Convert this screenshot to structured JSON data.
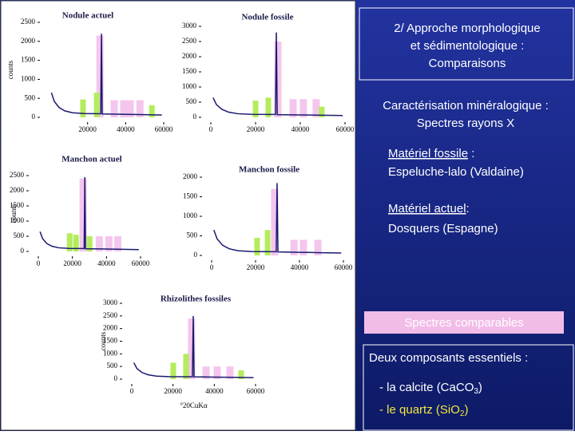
{
  "chart_data": [
    {
      "type": "bar",
      "title": "Nodule actuel",
      "ylabel": "counts",
      "xlim": [
        0,
        60000
      ],
      "ylim": [
        0,
        2500
      ],
      "xticks": [
        20000,
        40000,
        60000
      ],
      "yticks": [
        0,
        500,
        1000,
        1500,
        2000,
        2500
      ],
      "series": [
        {
          "type": "bar",
          "color": "#f4c6ee",
          "x": [
            26500,
            34000,
            39000,
            42400,
            47500
          ],
          "values": [
            2150,
            450,
            450,
            450,
            450
          ]
        },
        {
          "type": "bar",
          "color": "#b4ec5c",
          "x": [
            17600,
            24800,
            53800
          ],
          "values": [
            470,
            650,
            320
          ]
        },
        {
          "type": "line",
          "color": "#1a1a6e",
          "x": [
            1000,
            2500,
            5000,
            8000,
            12000,
            18000,
            26900,
            27300,
            27700,
            40000,
            50000,
            59000
          ],
          "values": [
            650,
            420,
            260,
            170,
            120,
            100,
            95,
            2200,
            90,
            80,
            70,
            60
          ]
        }
      ]
    },
    {
      "type": "bar",
      "title": "Nodule fossile",
      "xlim": [
        0,
        60000
      ],
      "ylim": [
        0,
        3000
      ],
      "xticks": [
        0,
        20000,
        40000,
        60000
      ],
      "yticks": [
        0,
        500,
        1000,
        1500,
        2000,
        2500,
        3000
      ],
      "series": [
        {
          "type": "bar",
          "color": "#f4c6ee",
          "x": [
            30000,
            36800,
            41400,
            47100
          ],
          "values": [
            2500,
            600,
            600,
            600
          ]
        },
        {
          "type": "bar",
          "color": "#b4ec5c",
          "x": [
            20000,
            25700,
            49600
          ],
          "values": [
            550,
            650,
            350
          ]
        },
        {
          "type": "line",
          "color": "#1a1a6e",
          "x": [
            1000,
            2500,
            5000,
            8000,
            12000,
            18000,
            28900,
            29300,
            29700,
            40000,
            50000,
            59000
          ],
          "values": [
            650,
            420,
            260,
            170,
            120,
            100,
            95,
            2800,
            90,
            80,
            70,
            60
          ]
        }
      ]
    },
    {
      "type": "bar",
      "title": "Manchon actuel",
      "ylabel": "counts",
      "xlim": [
        0,
        60000
      ],
      "ylim": [
        0,
        2500
      ],
      "xticks": [
        0,
        20000,
        40000,
        60000
      ],
      "yticks": [
        0,
        500,
        1000,
        1500,
        2000,
        2500
      ],
      "series": [
        {
          "type": "bar",
          "color": "#f4c6ee",
          "x": [
            26300,
            35800,
            41400,
            46600
          ],
          "values": [
            2400,
            500,
            500,
            500
          ]
        },
        {
          "type": "bar",
          "color": "#b4ec5c",
          "x": [
            18400,
            22100,
            30100
          ],
          "values": [
            600,
            550,
            500
          ]
        },
        {
          "type": "line",
          "color": "#1a1a6e",
          "x": [
            1000,
            2500,
            5000,
            8000,
            12000,
            18000,
            26900,
            27300,
            27700,
            40000,
            50000,
            59000
          ],
          "values": [
            650,
            420,
            260,
            170,
            120,
            100,
            95,
            2450,
            90,
            80,
            70,
            60
          ]
        }
      ]
    },
    {
      "type": "bar",
      "title": "Manchon fossile",
      "xlim": [
        0,
        60000
      ],
      "ylim": [
        0,
        2000
      ],
      "xticks": [
        0,
        20000,
        40000,
        60000
      ],
      "yticks": [
        0,
        500,
        1000,
        1500,
        2000
      ],
      "series": [
        {
          "type": "bar",
          "color": "#f4c6ee",
          "x": [
            28700,
            37500,
            41800,
            48400
          ],
          "values": [
            1700,
            400,
            400,
            400
          ]
        },
        {
          "type": "bar",
          "color": "#b4ec5c",
          "x": [
            20700,
            25500
          ],
          "values": [
            450,
            650
          ]
        },
        {
          "type": "line",
          "color": "#1a1a6e",
          "x": [
            1000,
            2500,
            5000,
            8000,
            12000,
            18000,
            29400,
            29800,
            30200,
            40000,
            50000,
            59000
          ],
          "values": [
            650,
            420,
            260,
            170,
            120,
            100,
            95,
            1850,
            90,
            80,
            70,
            60
          ]
        }
      ]
    },
    {
      "type": "bar",
      "title": "Rhizolithes fossiles",
      "ylabel": "counts",
      "xlabel": "°20CuKα",
      "xlim": [
        0,
        60000
      ],
      "ylim": [
        0,
        3000
      ],
      "xticks": [
        0,
        20000,
        40000,
        60000
      ],
      "yticks": [
        0,
        500,
        1000,
        1500,
        2000,
        2500,
        3000
      ],
      "series": [
        {
          "type": "bar",
          "color": "#f4c6ee",
          "x": [
            29000,
            36000,
            41400,
            47600
          ],
          "values": [
            2400,
            500,
            500,
            500
          ]
        },
        {
          "type": "bar",
          "color": "#b4ec5c",
          "x": [
            20100,
            26300,
            53000
          ],
          "values": [
            650,
            1000,
            350
          ]
        },
        {
          "type": "line",
          "color": "#1a1a6e",
          "x": [
            1000,
            2500,
            5000,
            8000,
            12000,
            18000,
            29400,
            29800,
            30200,
            40000,
            50000,
            59000
          ],
          "values": [
            650,
            420,
            260,
            170,
            120,
            100,
            95,
            2500,
            90,
            80,
            70,
            60
          ]
        }
      ]
    }
  ],
  "panel": {
    "header": [
      "2/ Approche morphologique",
      "et sédimentologique :",
      "Comparaisons"
    ],
    "subtitle": [
      "Caractérisation minéralogique :",
      "Spectres rayons X"
    ],
    "fossil": {
      "label": "Matériel fossile",
      "rest": " :",
      "place": "Espeluche-lalo (Valdaine)"
    },
    "actual": {
      "label": "Matériel actuel",
      "rest": ":",
      "place": "Dosquers (Espagne)"
    },
    "highlight": "Spectres comparables",
    "components": {
      "title": "Deux composants essentiels :",
      "calcite": {
        "text": "- la calcite (CaCO",
        "sub": "3",
        "end": ")"
      },
      "quartz": {
        "text": "- le quartz (SiO",
        "sub": "2",
        "end": ")"
      }
    }
  }
}
